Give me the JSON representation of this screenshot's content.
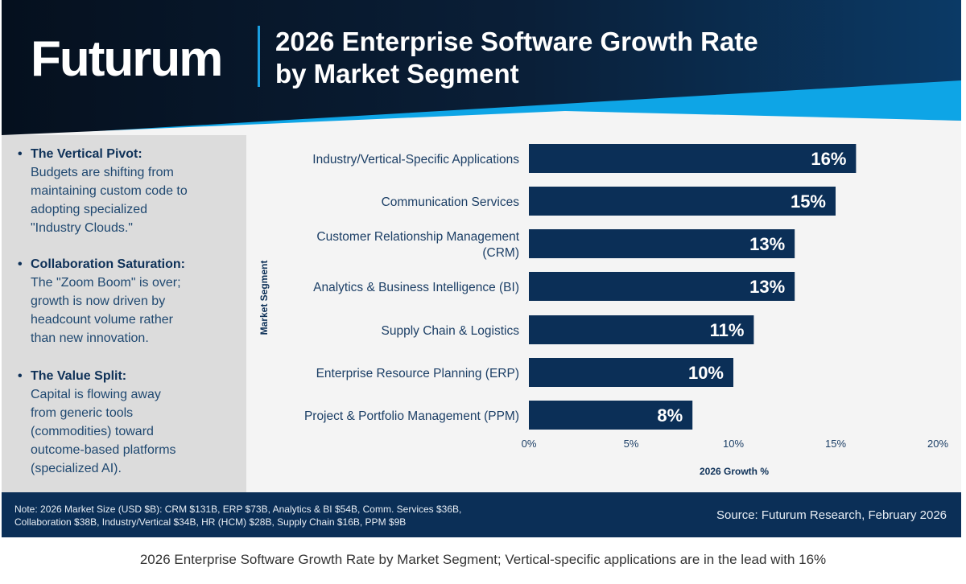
{
  "header": {
    "logo": "Futurum",
    "title_line1": "2026 Enterprise Software Growth Rate",
    "title_line2": "by Market Segment"
  },
  "insights": [
    {
      "head": "The Vertical Pivot:",
      "lines": [
        "Budgets are shifting from",
        "maintaining custom code to",
        "adopting specialized",
        "\"Industry Clouds.\""
      ]
    },
    {
      "head": "Collaboration Saturation:",
      "lines": [
        "The \"Zoom Boom\" is over;",
        "growth is now driven by",
        "headcount volume rather",
        "than new innovation."
      ]
    },
    {
      "head": "The Value Split:",
      "lines": [
        "Capital is flowing away",
        "from generic tools",
        "(commodities) toward",
        "outcome-based platforms",
        "(specialized AI)."
      ]
    }
  ],
  "chart_data": {
    "type": "bar",
    "orientation": "horizontal",
    "categories": [
      [
        "Industry/Vertical-Specific Applications"
      ],
      [
        "Communication Services"
      ],
      [
        "Customer Relationship Management",
        "(CRM)"
      ],
      [
        "Analytics & Business Intelligence (BI)"
      ],
      [
        "Supply Chain & Logistics"
      ],
      [
        "Enterprise Resource Planning (ERP)"
      ],
      [
        "Project & Portfolio Management (PPM)"
      ]
    ],
    "values": [
      16,
      15,
      13,
      13,
      11,
      10,
      8
    ],
    "data_labels": [
      "16%",
      "15%",
      "13%",
      "13%",
      "11%",
      "10%",
      "8%"
    ],
    "xlabel": "2026 Growth %",
    "ylabel": "Market Segment",
    "xlim": [
      0,
      20
    ],
    "xticks": [
      0,
      5,
      10,
      15,
      20
    ],
    "xtick_labels": [
      "0%",
      "5%",
      "10%",
      "15%",
      "20%"
    ],
    "grid": false,
    "bar_color": "#0b2f57",
    "label_color": "#ffffff"
  },
  "footer": {
    "note_line1": "Note: 2026 Market Size (USD $B): CRM $131B, ERP $73B, Analytics & BI $54B, Comm. Services $36B,",
    "note_line2": "Collaboration $38B, Industry/Vertical $34B, HR (HCM) $28B, Supply Chain $16B, PPM $9B",
    "source": "Source: Futurum Research, February 2026"
  },
  "caption": "2026 Enterprise Software Growth Rate by Market Segment; Vertical-specific applications are in the lead with 16%"
}
